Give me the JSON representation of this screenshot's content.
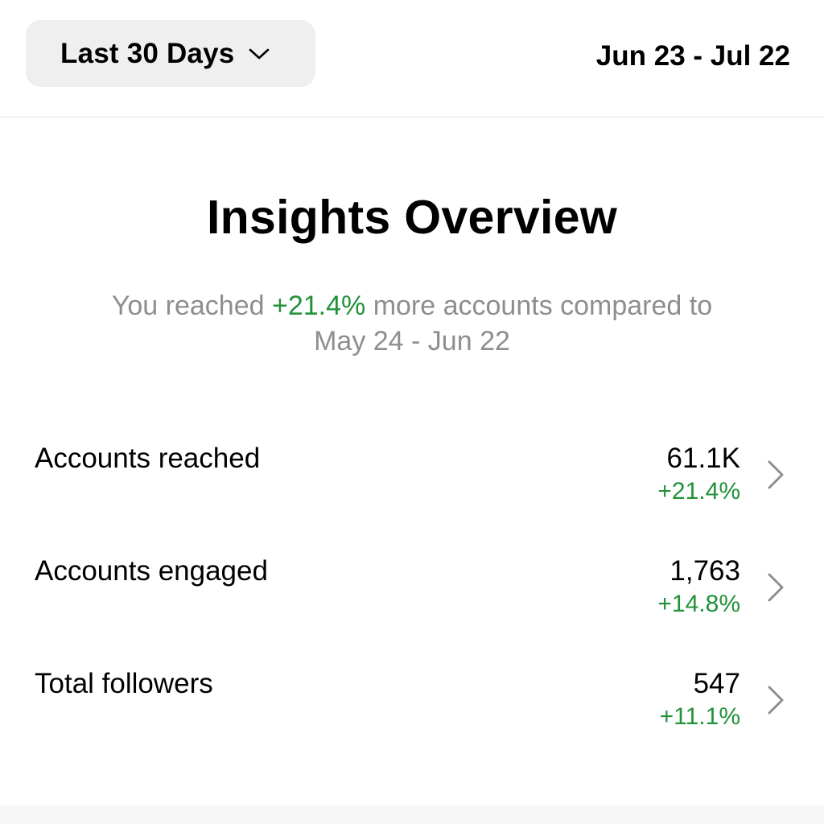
{
  "header": {
    "range_label": "Last 30 Days",
    "date_range": "Jun 23 - Jul 22"
  },
  "overview": {
    "title": "Insights Overview",
    "summary_prefix": "You reached ",
    "summary_pct": "+21.4%",
    "summary_suffix": " more accounts compared to",
    "summary_period": "May 24 - Jun 22"
  },
  "metrics": [
    {
      "label": "Accounts reached",
      "value": "61.1K",
      "change": "+21.4%"
    },
    {
      "label": "Accounts engaged",
      "value": "1,763",
      "change": "+14.8%"
    },
    {
      "label": "Total followers",
      "value": "547",
      "change": "+11.1%"
    }
  ],
  "colors": {
    "positive": "#22923a",
    "muted": "#8e8e8e",
    "button_bg": "#efefef"
  },
  "icons": {
    "dropdown": "chevron-down-icon",
    "row_arrow": "chevron-right-icon"
  }
}
